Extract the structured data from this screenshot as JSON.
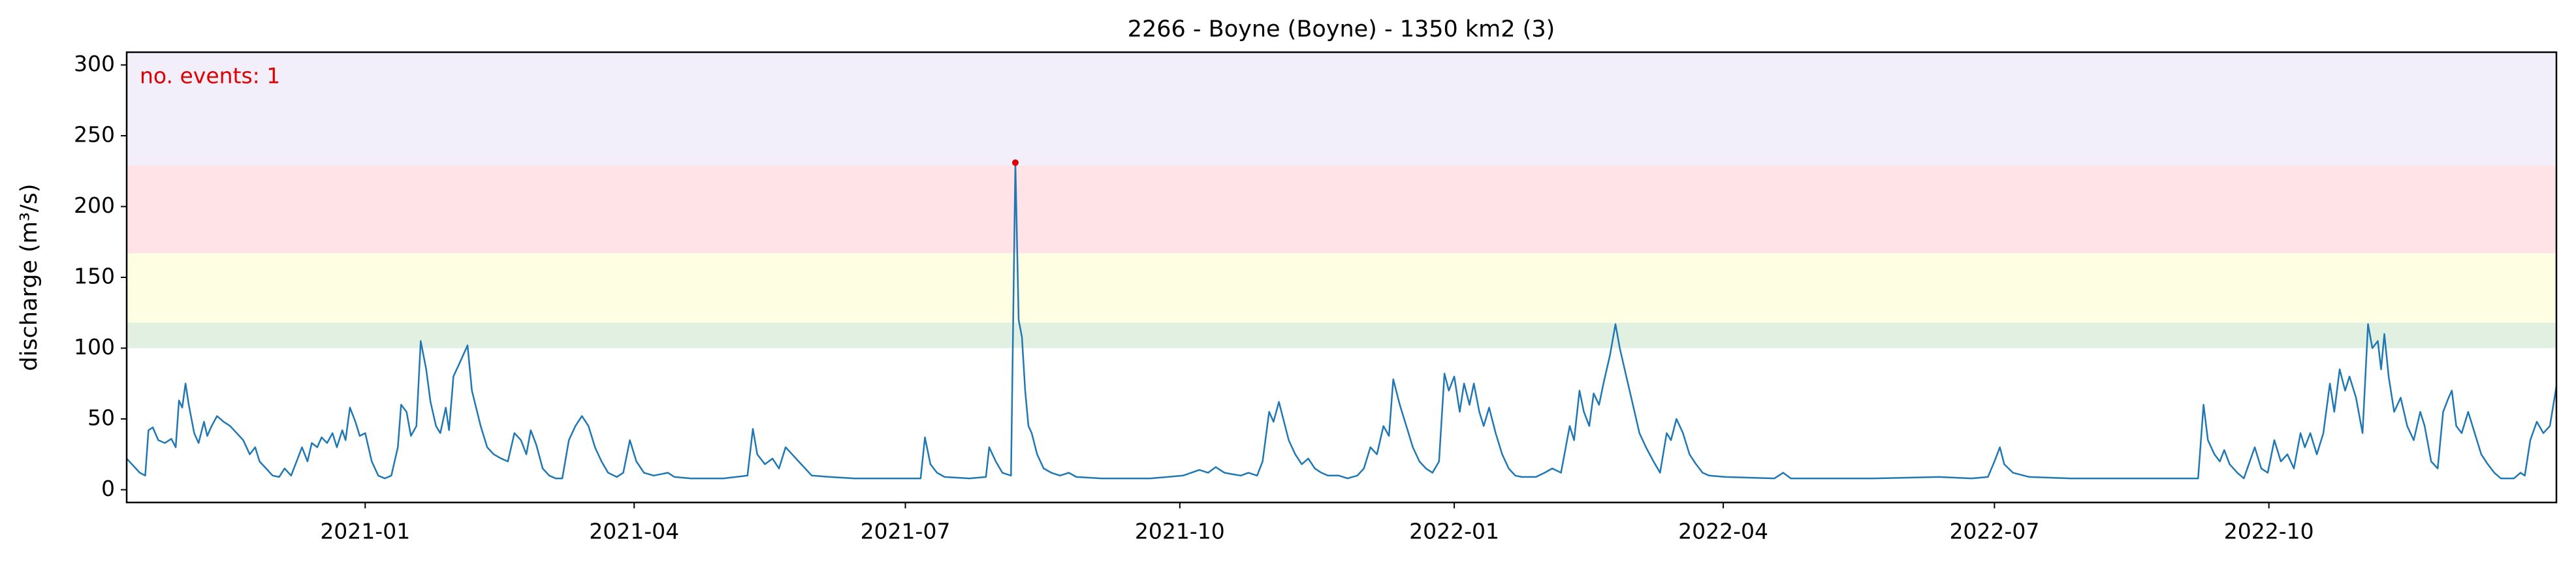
{
  "chart_data": {
    "type": "line",
    "title": "2266 - Boyne (Boyne) - 1350 km2 (3)",
    "y_label": "discharge (m³/s)",
    "annotation": {
      "text": "no. events: 1",
      "color": "#e00000"
    },
    "xlim": [
      2020.781,
      2023.012
    ],
    "ylim": [
      -9,
      309
    ],
    "xticks": [
      {
        "value": 2021,
        "label": "2021-01"
      },
      {
        "value": 2021.247,
        "label": "2021-04"
      },
      {
        "value": 2021.496,
        "label": "2021-07"
      },
      {
        "value": 2021.748,
        "label": "2021-10"
      },
      {
        "value": 2022,
        "label": "2022-01"
      },
      {
        "value": 2022.247,
        "label": "2022-04"
      },
      {
        "value": 2022.496,
        "label": "2022-07"
      },
      {
        "value": 2022.748,
        "label": "2022-10"
      }
    ],
    "yticks": [
      0,
      50,
      100,
      150,
      200,
      250,
      300
    ],
    "bands": [
      {
        "from": 100,
        "to": 118,
        "color": "#e2f0e2"
      },
      {
        "from": 118,
        "to": 167,
        "color": "#fefee3"
      },
      {
        "from": 167,
        "to": 229,
        "color": "#ffe3e6"
      },
      {
        "from": 229,
        "to": 309,
        "color": "#f2eefa"
      }
    ],
    "color": "#1f77b4",
    "x": [
      2020.781,
      2020.793,
      2020.798,
      2020.801,
      2020.805,
      2020.81,
      2020.816,
      2020.822,
      2020.826,
      2020.829,
      2020.832,
      2020.835,
      2020.838,
      2020.843,
      2020.847,
      2020.852,
      2020.855,
      2020.859,
      2020.864,
      2020.87,
      2020.876,
      2020.882,
      2020.888,
      2020.894,
      2020.899,
      2020.903,
      2020.909,
      2020.915,
      2020.921,
      2020.926,
      2020.932,
      2020.938,
      2020.942,
      2020.947,
      2020.951,
      2020.956,
      2020.96,
      2020.965,
      2020.97,
      2020.974,
      2020.979,
      2020.982,
      2020.986,
      2020.991,
      2020.995,
      2021.0,
      2021.006,
      2021.012,
      2021.018,
      2021.024,
      2021.03,
      2021.033,
      2021.038,
      2021.042,
      2021.047,
      2021.051,
      2021.056,
      2021.06,
      2021.065,
      2021.069,
      2021.074,
      2021.077,
      2021.081,
      2021.087,
      2021.094,
      2021.098,
      2021.106,
      2021.112,
      2021.118,
      2021.125,
      2021.131,
      2021.137,
      2021.143,
      2021.148,
      2021.152,
      2021.157,
      2021.163,
      2021.169,
      2021.175,
      2021.181,
      2021.187,
      2021.193,
      2021.199,
      2021.205,
      2021.211,
      2021.217,
      2021.223,
      2021.231,
      2021.237,
      2021.243,
      2021.249,
      2021.256,
      2021.265,
      2021.278,
      2021.284,
      2021.299,
      2021.329,
      2021.351,
      2021.356,
      2021.36,
      2021.367,
      2021.374,
      2021.38,
      2021.386,
      2021.392,
      2021.398,
      2021.404,
      2021.41,
      2021.427,
      2021.449,
      2021.48,
      2021.51,
      2021.514,
      2021.519,
      2021.525,
      2021.532,
      2021.555,
      2021.57,
      2021.573,
      2021.579,
      2021.585,
      2021.593,
      2021.597,
      2021.6,
      2021.603,
      2021.606,
      2021.609,
      2021.612,
      2021.617,
      2021.623,
      2021.63,
      2021.638,
      2021.646,
      2021.653,
      2021.676,
      2021.721,
      2021.751,
      2021.766,
      2021.774,
      2021.781,
      2021.789,
      2021.796,
      2021.804,
      2021.811,
      2021.819,
      2021.824,
      2021.83,
      2021.834,
      2021.839,
      2021.843,
      2021.848,
      2021.854,
      2021.86,
      2021.866,
      2021.872,
      2021.878,
      2021.884,
      2021.894,
      2021.902,
      2021.911,
      2021.917,
      2021.923,
      2021.929,
      2021.935,
      2021.94,
      2021.944,
      2021.95,
      2021.956,
      2021.962,
      2021.968,
      2021.974,
      2021.98,
      2021.986,
      2021.991,
      2021.995,
      2022.0,
      2022.005,
      2022.009,
      2022.014,
      2022.018,
      2022.023,
      2022.027,
      2022.032,
      2022.038,
      2022.044,
      2022.05,
      2022.056,
      2022.062,
      2022.075,
      2022.083,
      2022.09,
      2022.098,
      2022.106,
      2022.11,
      2022.115,
      2022.119,
      2022.124,
      2022.128,
      2022.133,
      2022.137,
      2022.143,
      2022.148,
      2022.152,
      2022.158,
      2022.164,
      2022.17,
      2022.176,
      2022.183,
      2022.189,
      2022.195,
      2022.199,
      2022.204,
      2022.21,
      2022.216,
      2022.222,
      2022.228,
      2022.234,
      2022.249,
      2022.294,
      2022.302,
      2022.309,
      2022.354,
      2022.385,
      2022.445,
      2022.475,
      2022.49,
      2022.496,
      2022.501,
      2022.505,
      2022.513,
      2022.528,
      2022.566,
      2022.626,
      2022.683,
      2022.688,
      2022.692,
      2022.698,
      2022.703,
      2022.707,
      2022.712,
      2022.719,
      2022.725,
      2022.735,
      2022.741,
      2022.747,
      2022.753,
      2022.759,
      2022.765,
      2022.771,
      2022.777,
      2022.781,
      2022.786,
      2022.792,
      2022.798,
      2022.804,
      2022.808,
      2022.813,
      2022.818,
      2022.822,
      2022.828,
      2022.834,
      2022.839,
      2022.843,
      2022.848,
      2022.851,
      2022.854,
      2022.858,
      2022.863,
      2022.869,
      2022.875,
      2022.881,
      2022.887,
      2022.891,
      2022.897,
      2022.903,
      2022.908,
      2022.913,
      2022.916,
      2022.92,
      2022.925,
      2022.931,
      2022.937,
      2022.943,
      2022.949,
      2022.955,
      2022.961,
      2022.973,
      2022.979,
      2022.983,
      2022.988,
      2022.994,
      2023.0,
      2023.006,
      2023.012
    ],
    "values": [
      22,
      12,
      10,
      42,
      44,
      35,
      33,
      36,
      30,
      63,
      58,
      75,
      60,
      40,
      33,
      48,
      38,
      45,
      52,
      48,
      45,
      40,
      35,
      25,
      30,
      20,
      15,
      10,
      9,
      15,
      10,
      22,
      30,
      20,
      33,
      30,
      37,
      33,
      40,
      30,
      42,
      35,
      58,
      48,
      38,
      40,
      20,
      10,
      8,
      10,
      30,
      60,
      55,
      38,
      45,
      105,
      85,
      62,
      45,
      40,
      58,
      42,
      80,
      90,
      102,
      70,
      45,
      30,
      25,
      22,
      20,
      40,
      35,
      25,
      42,
      32,
      15,
      10,
      8,
      8,
      35,
      45,
      52,
      45,
      30,
      20,
      12,
      9,
      12,
      35,
      20,
      12,
      10,
      12,
      9,
      8,
      8,
      10,
      43,
      25,
      18,
      22,
      15,
      30,
      25,
      20,
      15,
      10,
      9,
      8,
      8,
      8,
      37,
      18,
      12,
      9,
      8,
      9,
      30,
      20,
      12,
      10,
      231,
      120,
      108,
      70,
      45,
      40,
      25,
      15,
      12,
      10,
      12,
      9,
      8,
      8,
      10,
      14,
      12,
      16,
      12,
      11,
      10,
      12,
      10,
      20,
      55,
      48,
      62,
      50,
      35,
      25,
      18,
      22,
      15,
      12,
      10,
      10,
      8,
      10,
      15,
      30,
      25,
      45,
      38,
      78,
      60,
      45,
      30,
      20,
      15,
      12,
      20,
      82,
      70,
      80,
      55,
      75,
      60,
      75,
      55,
      45,
      58,
      40,
      25,
      15,
      10,
      9,
      9,
      12,
      15,
      12,
      45,
      35,
      70,
      55,
      45,
      68,
      60,
      75,
      95,
      117,
      100,
      80,
      60,
      40,
      30,
      20,
      12,
      40,
      35,
      50,
      40,
      25,
      18,
      12,
      10,
      9,
      8,
      12,
      8,
      8,
      8,
      9,
      8,
      9,
      20,
      30,
      18,
      12,
      9,
      8,
      8,
      8,
      60,
      35,
      25,
      20,
      28,
      18,
      12,
      8,
      30,
      15,
      12,
      35,
      20,
      25,
      15,
      40,
      30,
      40,
      25,
      40,
      75,
      55,
      85,
      70,
      80,
      65,
      40,
      117,
      100,
      105,
      85,
      110,
      80,
      55,
      65,
      45,
      35,
      55,
      45,
      20,
      15,
      55,
      65,
      70,
      45,
      40,
      55,
      40,
      25,
      18,
      12,
      8,
      8,
      12,
      10,
      35,
      48,
      40,
      45,
      73
    ],
    "markers": {
      "x": [
        2021.597
      ],
      "values": [
        231
      ],
      "color": "#e00000"
    }
  }
}
